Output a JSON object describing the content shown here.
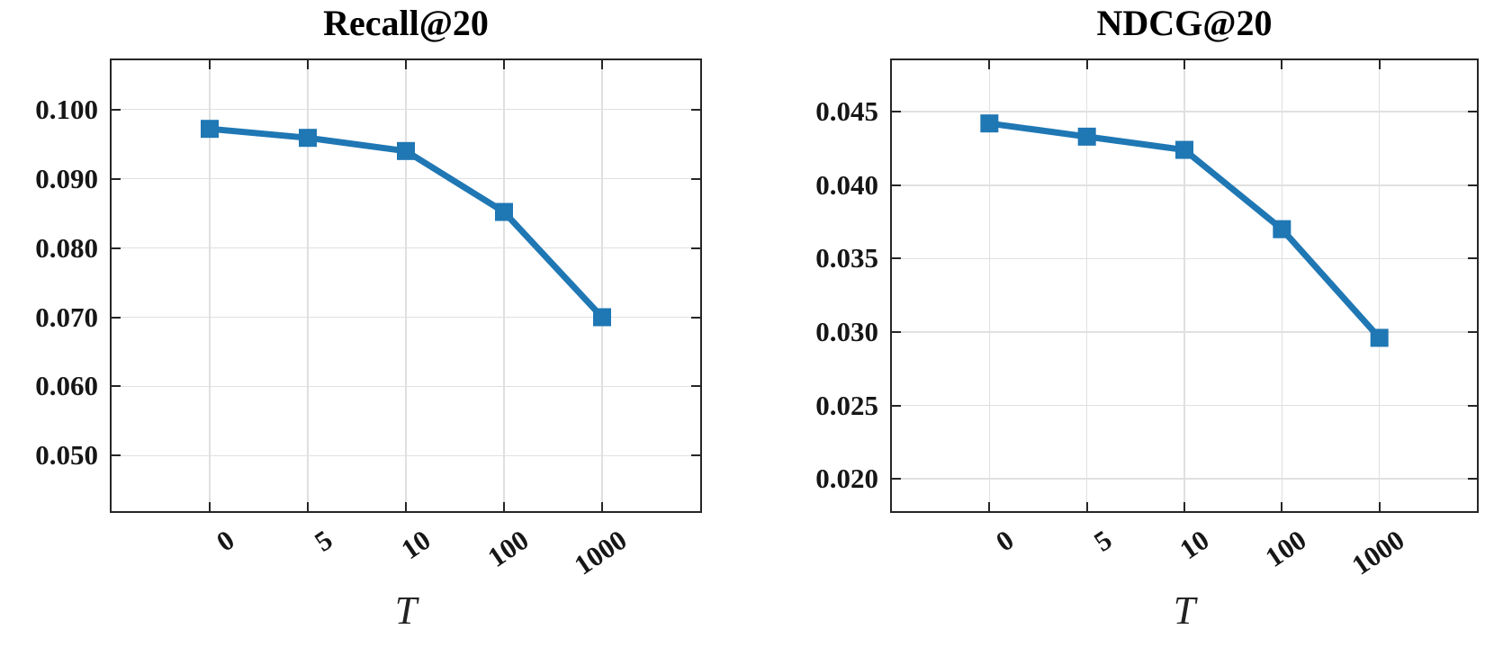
{
  "figure": {
    "background": "#ffffff",
    "accent_color": "#1f77b4",
    "grid_color": "#e0e0e0",
    "axis_color": "#262626",
    "tick_label_color": "#161616"
  },
  "chart_data": [
    {
      "type": "line",
      "title": "Recall@20",
      "xlabel": "T",
      "categories": [
        "0",
        "5",
        "10",
        "100",
        "1000"
      ],
      "values": [
        0.0972,
        0.0959,
        0.094,
        0.0852,
        0.07
      ],
      "ylim": [
        0.042,
        0.1071
      ],
      "yticks": [
        0.1,
        0.09,
        0.08,
        0.07,
        0.06,
        0.05
      ],
      "ytick_labels": [
        "0.100",
        "0.090",
        "0.080",
        "0.070",
        "0.060",
        "0.050"
      ],
      "grid": true,
      "legend": "none",
      "marker": "filled-square",
      "series_color": "#1f77b4"
    },
    {
      "type": "line",
      "title": "NDCG@20",
      "xlabel": "T",
      "categories": [
        "0",
        "5",
        "10",
        "100",
        "1000"
      ],
      "values": [
        0.0442,
        0.0433,
        0.0424,
        0.037,
        0.0296
      ],
      "ylim": [
        0.0178,
        0.0485
      ],
      "yticks": [
        0.045,
        0.04,
        0.035,
        0.03,
        0.025,
        0.02
      ],
      "ytick_labels": [
        "0.045",
        "0.040",
        "0.035",
        "0.030",
        "0.025",
        "0.020"
      ],
      "grid": true,
      "legend": "none",
      "marker": "filled-square",
      "series_color": "#1f77b4"
    }
  ]
}
